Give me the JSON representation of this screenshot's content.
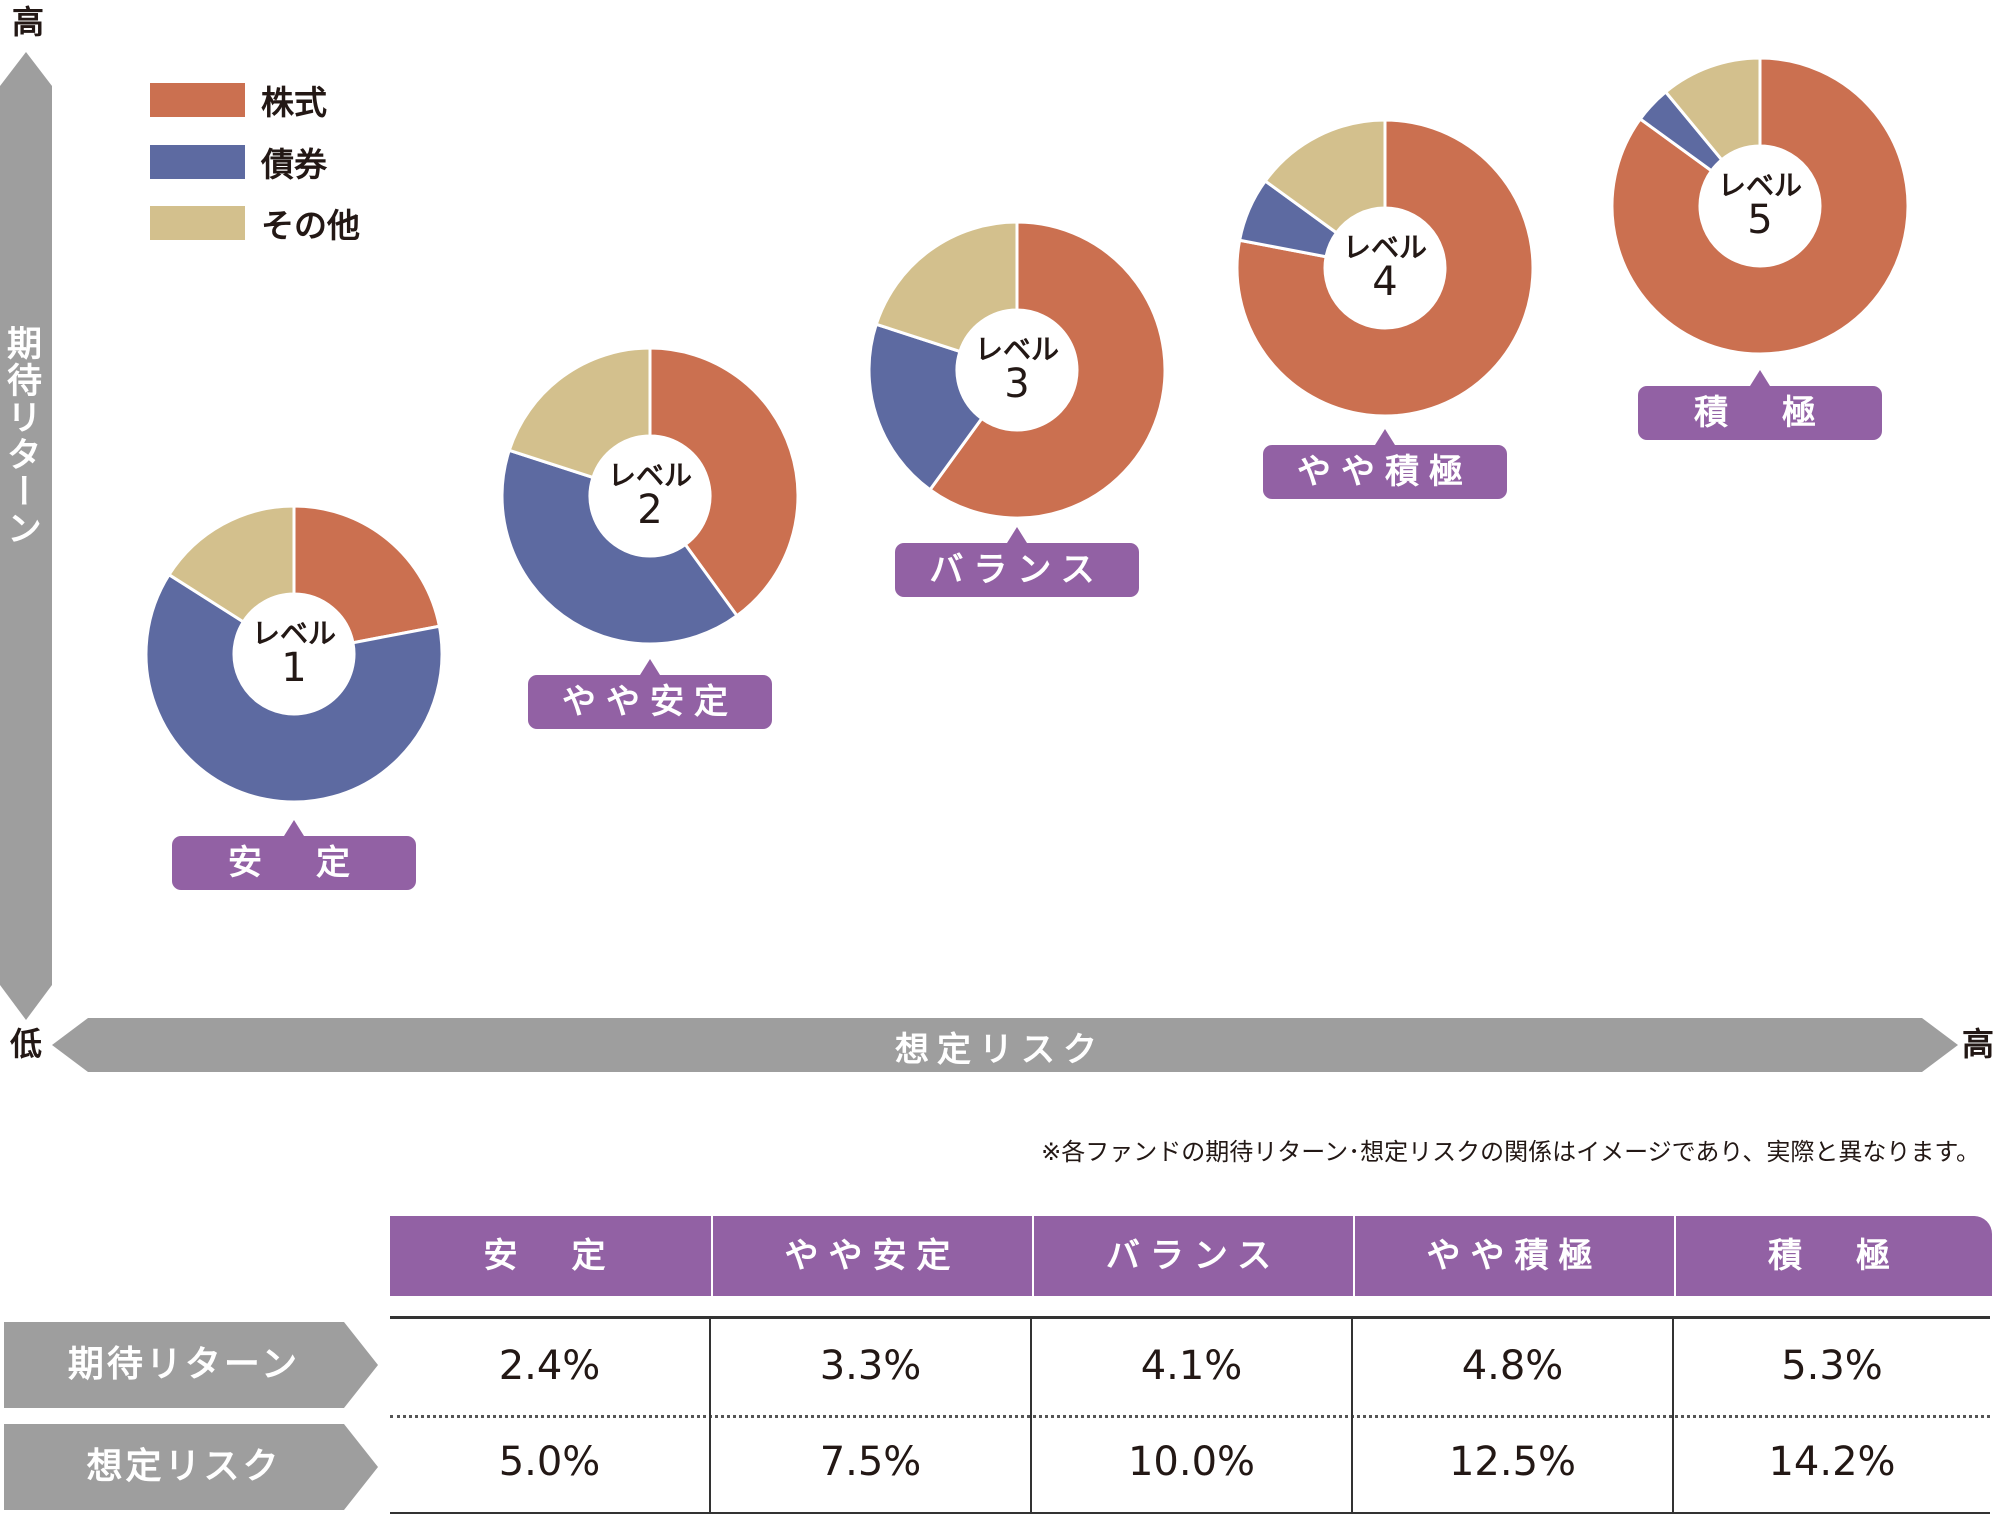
{
  "axes": {
    "y_high": "高",
    "y_label": "期待リターン",
    "x_low": "低",
    "x_label": "想定リスク",
    "x_high": "高"
  },
  "legend": [
    {
      "label": "株式",
      "color": "#cb7050"
    },
    {
      "label": "債券",
      "color": "#5d6aa1"
    },
    {
      "label": "その他",
      "color": "#d3c08d"
    }
  ],
  "chart_data": {
    "type": "pie",
    "series_names": [
      "株式",
      "債券",
      "その他"
    ],
    "colors": [
      "#cb7050",
      "#5d6aa1",
      "#d3c08d"
    ],
    "donuts": [
      {
        "level_text": "レベル",
        "level_num": "1",
        "category": "安　定",
        "values": [
          22,
          62,
          16
        ]
      },
      {
        "level_text": "レベル",
        "level_num": "2",
        "category": "やや安定",
        "values": [
          40,
          40,
          20
        ]
      },
      {
        "level_text": "レベル",
        "level_num": "3",
        "category": "バランス",
        "values": [
          60,
          20,
          20
        ]
      },
      {
        "level_text": "レベル",
        "level_num": "4",
        "category": "やや積極",
        "values": [
          78,
          7,
          15
        ]
      },
      {
        "level_text": "レベル",
        "level_num": "5",
        "category": "積　極",
        "values": [
          85,
          4,
          11
        ]
      }
    ]
  },
  "note": "※各ファンドの期待リターン･想定リスクの関係はイメージであり、実際と異なります。",
  "table": {
    "headers": [
      "安　定",
      "やや安定",
      "バランス",
      "やや積極",
      "積　極"
    ],
    "rows": [
      {
        "label": "期待リターン",
        "values": [
          "2.4%",
          "3.3%",
          "4.1%",
          "4.8%",
          "5.3%"
        ]
      },
      {
        "label": "想定リスク",
        "values": [
          "5.0%",
          "7.5%",
          "10.0%",
          "12.5%",
          "14.2%"
        ]
      }
    ]
  }
}
